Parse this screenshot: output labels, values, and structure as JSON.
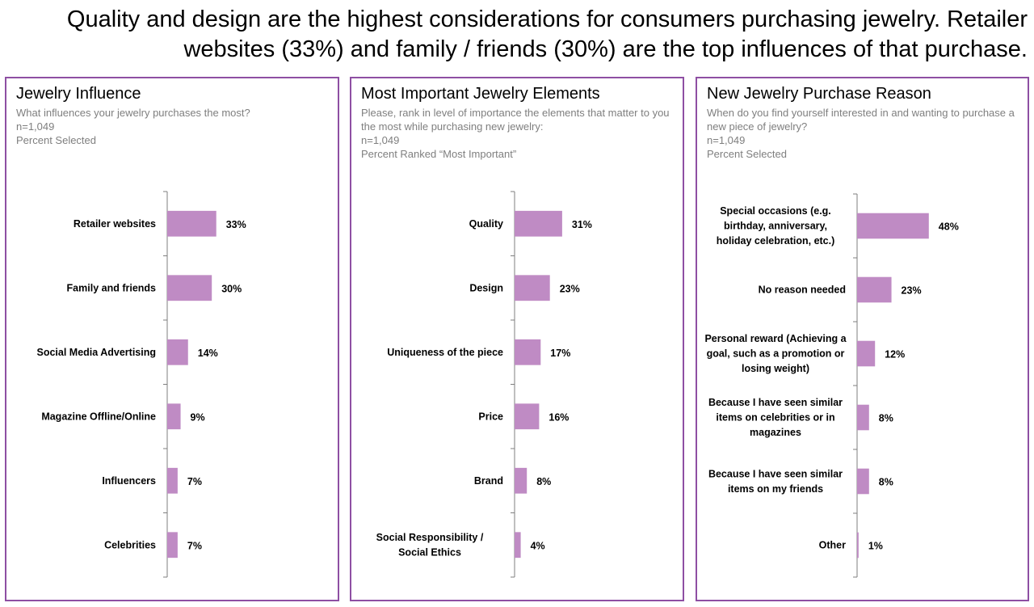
{
  "headline": "Quality and design are the highest considerations for consumers purchasing jewelry. Retailer websites (33%) and family / friends (30%) are the top influences of that purchase.",
  "colors": {
    "bar": "#bf8bc4",
    "border": "#8e4fa3",
    "axis": "#7f7f7f",
    "subtitle": "#7f7f7f"
  },
  "chart_data": [
    {
      "type": "bar",
      "orientation": "horizontal",
      "title": "Jewelry Influence",
      "subtitle": [
        "What influences your jewelry purchases the most?",
        "n=1,049",
        "Percent Selected"
      ],
      "categories": [
        "Retailer websites",
        "Family and friends",
        "Social Media Advertising",
        "Magazine Offline/Online",
        "Influencers",
        "Celebrities"
      ],
      "values": [
        33,
        30,
        14,
        9,
        7,
        7
      ],
      "value_labels": [
        "33%",
        "30%",
        "14%",
        "9%",
        "7%",
        "7%"
      ],
      "xlim": [
        0,
        50
      ]
    },
    {
      "type": "bar",
      "orientation": "horizontal",
      "title": "Most Important Jewelry Elements",
      "subtitle": [
        "Please, rank in level of importance the elements that matter to you the most while purchasing new jewelry:",
        "n=1,049",
        "Percent Ranked “Most Important”"
      ],
      "categories": [
        "Quality",
        "Design",
        "Uniqueness of the piece",
        "Price",
        "Brand",
        "Social Responsibility / Social Ethics"
      ],
      "values": [
        31,
        23,
        17,
        16,
        8,
        4
      ],
      "value_labels": [
        "31%",
        "23%",
        "17%",
        "16%",
        "8%",
        "4%"
      ],
      "xlim": [
        0,
        50
      ]
    },
    {
      "type": "bar",
      "orientation": "horizontal",
      "title": "New Jewelry Purchase Reason",
      "subtitle": [
        "When do you find yourself interested in and wanting to purchase a new piece of jewelry?",
        "n=1,049",
        "Percent Selected"
      ],
      "categories": [
        "Special occasions (e.g. birthday, anniversary, holiday celebration, etc.)",
        "No reason needed",
        "Personal reward (Achieving a goal, such as a promotion or losing weight)",
        "Because I have seen similar items on celebrities or in magazines",
        "Because I have seen similar items on my friends",
        "Other"
      ],
      "values": [
        48,
        23,
        12,
        8,
        8,
        1
      ],
      "value_labels": [
        "48%",
        "23%",
        "12%",
        "8%",
        "8%",
        "1%"
      ],
      "xlim": [
        0,
        50
      ]
    }
  ]
}
